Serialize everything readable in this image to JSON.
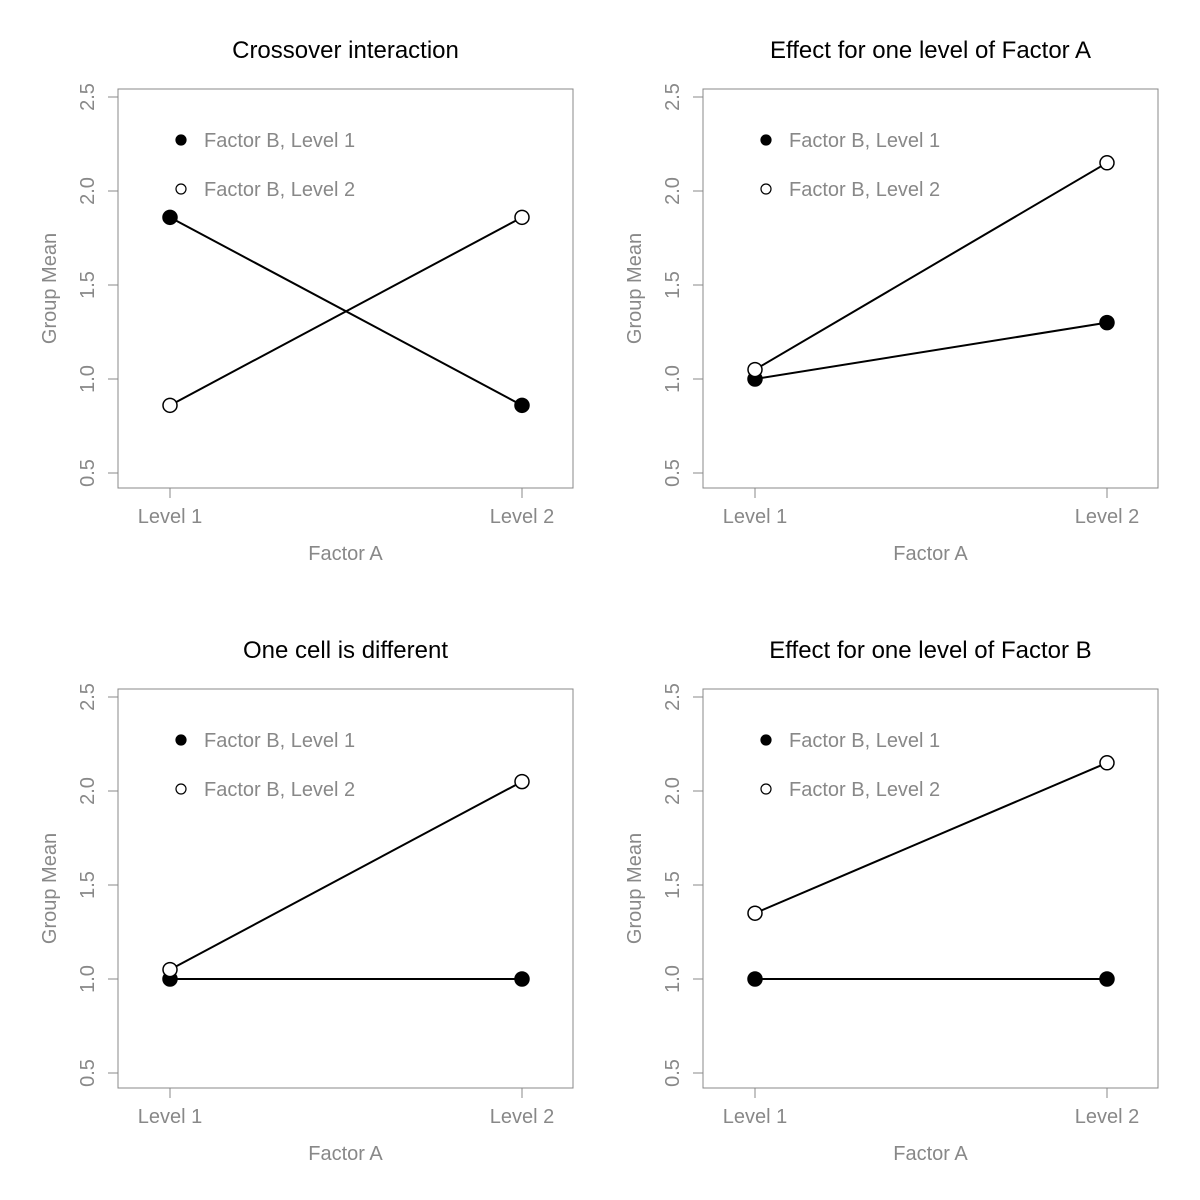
{
  "colors": {
    "axis": "#888888",
    "text": "#888888",
    "title": "#000000",
    "marker_line": "#000000",
    "filled": "#000000",
    "open": "#ffffff"
  },
  "chart_data": [
    {
      "type": "line",
      "title": "Crossover interaction",
      "xlabel": "Factor A",
      "ylabel": "Group Mean",
      "categories": [
        "Level 1",
        "Level 2"
      ],
      "ylim": [
        0.5,
        2.5
      ],
      "yticks": [
        "0.5",
        "1.0",
        "1.5",
        "2.0",
        "2.5"
      ],
      "legend": "top-left",
      "grid": false,
      "series": [
        {
          "name": "Factor B, Level 1",
          "marker": "filled",
          "values": [
            1.86,
            0.86
          ]
        },
        {
          "name": "Factor B, Level 2",
          "marker": "open",
          "values": [
            0.86,
            1.86
          ]
        }
      ]
    },
    {
      "type": "line",
      "title": "Effect for one level of Factor A",
      "xlabel": "Factor A",
      "ylabel": "Group Mean",
      "categories": [
        "Level 1",
        "Level 2"
      ],
      "ylim": [
        0.5,
        2.5
      ],
      "yticks": [
        "0.5",
        "1.0",
        "1.5",
        "2.0",
        "2.5"
      ],
      "legend": "top-left",
      "grid": false,
      "series": [
        {
          "name": "Factor B, Level 1",
          "marker": "filled",
          "values": [
            1.0,
            1.3
          ]
        },
        {
          "name": "Factor B, Level 2",
          "marker": "open",
          "values": [
            1.05,
            2.15
          ]
        }
      ]
    },
    {
      "type": "line",
      "title": "One cell is different",
      "xlabel": "Factor A",
      "ylabel": "Group Mean",
      "categories": [
        "Level 1",
        "Level 2"
      ],
      "ylim": [
        0.5,
        2.5
      ],
      "yticks": [
        "0.5",
        "1.0",
        "1.5",
        "2.0",
        "2.5"
      ],
      "legend": "top-left",
      "grid": false,
      "series": [
        {
          "name": "Factor B, Level 1",
          "marker": "filled",
          "values": [
            1.0,
            1.0
          ]
        },
        {
          "name": "Factor B, Level 2",
          "marker": "open",
          "values": [
            1.05,
            2.05
          ]
        }
      ]
    },
    {
      "type": "line",
      "title": "Effect for one level of Factor B",
      "xlabel": "Factor A",
      "ylabel": "Group Mean",
      "categories": [
        "Level 1",
        "Level 2"
      ],
      "ylim": [
        0.5,
        2.5
      ],
      "yticks": [
        "0.5",
        "1.0",
        "1.5",
        "2.0",
        "2.5"
      ],
      "legend": "top-left",
      "grid": false,
      "series": [
        {
          "name": "Factor B, Level 1",
          "marker": "filled",
          "values": [
            1.0,
            1.0
          ]
        },
        {
          "name": "Factor B, Level 2",
          "marker": "open",
          "values": [
            1.35,
            2.15
          ]
        }
      ]
    }
  ]
}
